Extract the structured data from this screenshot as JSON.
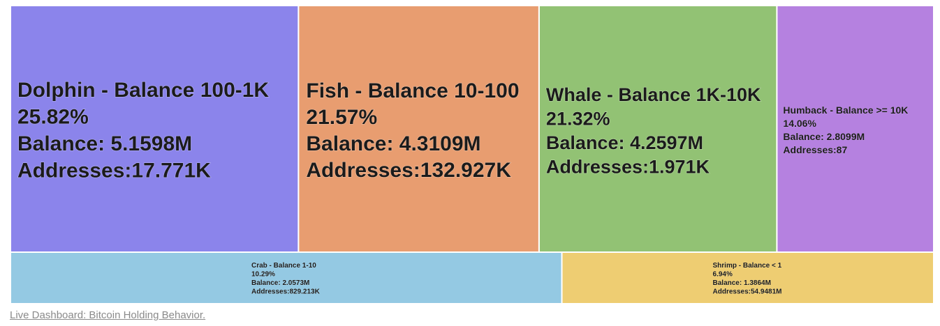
{
  "chart_data": {
    "type": "treemap",
    "title": "",
    "tiles": [
      {
        "id": "dolphin",
        "label": "Dolphin - Balance 100-1K",
        "percent": "25.82%",
        "balance": "Balance: 5.1598M",
        "addresses": "Addresses:17.771K",
        "value": 25.82,
        "color": "#8b84eb"
      },
      {
        "id": "fish",
        "label": "Fish - Balance 10-100",
        "percent": "21.57%",
        "balance": "Balance: 4.3109M",
        "addresses": "Addresses:132.927K",
        "value": 21.57,
        "color": "#e89d70"
      },
      {
        "id": "whale",
        "label": "Whale - Balance 1K-10K",
        "percent": "21.32%",
        "balance": "Balance: 4.2597M",
        "addresses": "Addresses:1.971K",
        "value": 21.32,
        "color": "#92c274"
      },
      {
        "id": "humback",
        "label": "Humback - Balance >= 10K",
        "percent": "14.06%",
        "balance": "Balance: 2.8099M",
        "addresses": "Addresses:87",
        "value": 14.06,
        "color": "#b581e0"
      },
      {
        "id": "crab",
        "label": "Crab - Balance 1-10",
        "percent": "10.29%",
        "balance": "Balance: 2.0573M",
        "addresses": "Addresses:829.213K",
        "value": 10.29,
        "color": "#94c9e3"
      },
      {
        "id": "shrimp",
        "label": "Shrimp - Balance < 1",
        "percent": "6.94%",
        "balance": "Balance: 1.3864M",
        "addresses": "Addresses:54.9481M",
        "value": 6.94,
        "color": "#eecd72"
      }
    ]
  },
  "footer": {
    "link_text": "Live Dashboard: Bitcoin Holding Behavior."
  }
}
